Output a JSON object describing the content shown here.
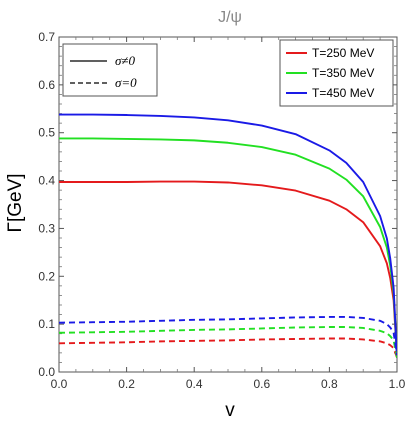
{
  "chart_data": {
    "type": "line",
    "title": "J/ψ",
    "xlabel": "v",
    "ylabel": "Γ[GeV]",
    "xlim": [
      0,
      1
    ],
    "ylim": [
      0,
      0.7
    ],
    "x_ticks": [
      "0.0",
      "0.2",
      "0.4",
      "0.6",
      "0.8",
      "1.0"
    ],
    "y_ticks": [
      "0.0",
      "0.1",
      "0.2",
      "0.3",
      "0.4",
      "0.5",
      "0.6",
      "0.7"
    ],
    "grid": false,
    "legend_style": {
      "position": "top-left",
      "entries": [
        {
          "label": "σ≠0",
          "line": "solid"
        },
        {
          "label": "σ=0",
          "line": "dashed"
        }
      ]
    },
    "legend_color": {
      "position": "top-right",
      "entries": [
        {
          "label": "T=250 MeV",
          "color": "#e41a1c"
        },
        {
          "label": "T=350 MeV",
          "color": "#22e022"
        },
        {
          "label": "T=450 MeV",
          "color": "#1a1ae6"
        }
      ]
    },
    "x": [
      0.0,
      0.1,
      0.2,
      0.3,
      0.4,
      0.5,
      0.6,
      0.7,
      0.8,
      0.85,
      0.9,
      0.95,
      0.97,
      0.98,
      0.99,
      1.0
    ],
    "series": [
      {
        "name": "T=250 MeV",
        "sigma": "σ≠0",
        "line": "solid",
        "color": "#e41a1c",
        "values": [
          0.397,
          0.397,
          0.397,
          0.398,
          0.398,
          0.396,
          0.39,
          0.379,
          0.358,
          0.34,
          0.313,
          0.263,
          0.227,
          0.196,
          0.15,
          0.03
        ]
      },
      {
        "name": "T=350 MeV",
        "sigma": "σ≠0",
        "line": "solid",
        "color": "#22e022",
        "values": [
          0.488,
          0.488,
          0.487,
          0.486,
          0.484,
          0.479,
          0.47,
          0.454,
          0.425,
          0.402,
          0.367,
          0.303,
          0.26,
          0.222,
          0.165,
          0.03
        ]
      },
      {
        "name": "T=450 MeV",
        "sigma": "σ≠0",
        "line": "solid",
        "color": "#1a1ae6",
        "values": [
          0.538,
          0.538,
          0.537,
          0.535,
          0.532,
          0.526,
          0.515,
          0.497,
          0.463,
          0.437,
          0.397,
          0.326,
          0.279,
          0.237,
          0.176,
          0.03
        ]
      },
      {
        "name": "T=250 MeV",
        "sigma": "σ=0",
        "line": "dashed",
        "color": "#e41a1c",
        "values": [
          0.06,
          0.061,
          0.062,
          0.064,
          0.065,
          0.066,
          0.068,
          0.069,
          0.07,
          0.07,
          0.068,
          0.064,
          0.06,
          0.056,
          0.05,
          0.03
        ]
      },
      {
        "name": "T=350 MeV",
        "sigma": "σ=0",
        "line": "dashed",
        "color": "#22e022",
        "values": [
          0.082,
          0.083,
          0.084,
          0.086,
          0.088,
          0.089,
          0.091,
          0.093,
          0.094,
          0.094,
          0.092,
          0.086,
          0.081,
          0.075,
          0.066,
          0.03
        ]
      },
      {
        "name": "T=450 MeV",
        "sigma": "σ=0",
        "line": "dashed",
        "color": "#1a1ae6",
        "values": [
          0.103,
          0.104,
          0.105,
          0.107,
          0.109,
          0.11,
          0.112,
          0.114,
          0.115,
          0.115,
          0.113,
          0.107,
          0.1,
          0.093,
          0.082,
          0.035
        ]
      }
    ]
  }
}
